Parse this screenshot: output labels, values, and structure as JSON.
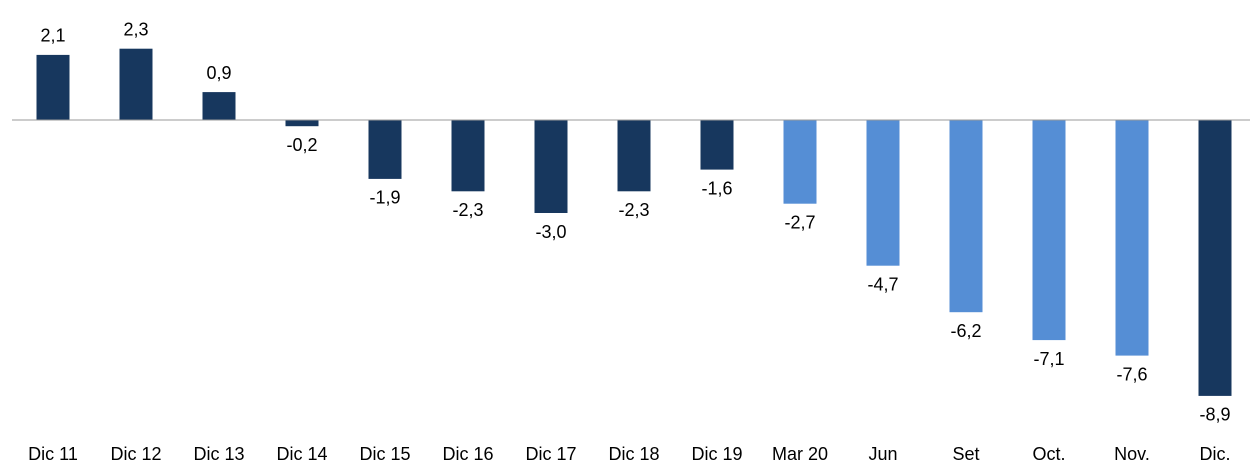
{
  "chart_data": {
    "type": "bar",
    "categories": [
      "Dic 11",
      "Dic 12",
      "Dic 13",
      "Dic 14",
      "Dic 15",
      "Dic 16",
      "Dic 17",
      "Dic 18",
      "Dic 19",
      "Mar 20",
      "Jun",
      "Set",
      "Oct.",
      "Nov.",
      "Dic."
    ],
    "values": [
      2.1,
      2.3,
      0.9,
      -0.2,
      -1.9,
      -2.3,
      -3.0,
      -2.3,
      -1.6,
      -2.7,
      -4.7,
      -6.2,
      -7.1,
      -7.6,
      -8.9
    ],
    "value_labels": [
      "2,1",
      "2,3",
      "0,9",
      "-0,2",
      "-1,9",
      "-2,3",
      "-3,0",
      "-2,3",
      "-1,6",
      "-2,7",
      "-4,7",
      "-6,2",
      "-7,1",
      "-7,6",
      "-8,9"
    ],
    "colors": [
      "#17375e",
      "#17375e",
      "#17375e",
      "#17375e",
      "#17375e",
      "#17375e",
      "#17375e",
      "#17375e",
      "#17375e",
      "#558ed5",
      "#558ed5",
      "#558ed5",
      "#558ed5",
      "#558ed5",
      "#17375e"
    ]
  }
}
